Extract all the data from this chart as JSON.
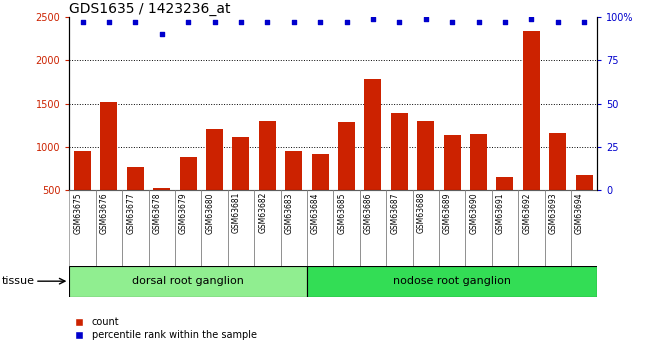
{
  "title": "GDS1635 / 1423236_at",
  "samples": [
    "GSM63675",
    "GSM63676",
    "GSM63677",
    "GSM63678",
    "GSM63679",
    "GSM63680",
    "GSM63681",
    "GSM63682",
    "GSM63683",
    "GSM63684",
    "GSM63685",
    "GSM63686",
    "GSM63687",
    "GSM63688",
    "GSM63689",
    "GSM63690",
    "GSM63691",
    "GSM63692",
    "GSM63693",
    "GSM63694"
  ],
  "counts": [
    950,
    1520,
    760,
    520,
    880,
    1200,
    1110,
    1300,
    950,
    910,
    1280,
    1780,
    1390,
    1300,
    1130,
    1150,
    650,
    2340,
    1160,
    670
  ],
  "percentiles": [
    97,
    97,
    97,
    90,
    97,
    97,
    97,
    97,
    97,
    97,
    97,
    99,
    97,
    99,
    97,
    97,
    97,
    99,
    97,
    97
  ],
  "groups": [
    {
      "label": "dorsal root ganglion",
      "start": 0,
      "end": 8,
      "color": "#90ee90"
    },
    {
      "label": "nodose root ganglion",
      "start": 9,
      "end": 19,
      "color": "#33dd55"
    }
  ],
  "tissue_label": "tissue",
  "bar_color": "#cc2200",
  "dot_color": "#0000cc",
  "xlabels_bg": "#d0d0d0",
  "ylim_left": [
    500,
    2500
  ],
  "ylim_right": [
    0,
    100
  ],
  "yticks_left": [
    500,
    1000,
    1500,
    2000,
    2500
  ],
  "yticks_right": [
    0,
    25,
    50,
    75,
    100
  ],
  "grid_ticks": [
    1000,
    1500,
    2000
  ],
  "legend_count_label": "count",
  "legend_pct_label": "percentile rank within the sample",
  "title_fontsize": 10,
  "tick_fontsize": 7,
  "label_fontsize": 8,
  "sample_fontsize": 5.5
}
